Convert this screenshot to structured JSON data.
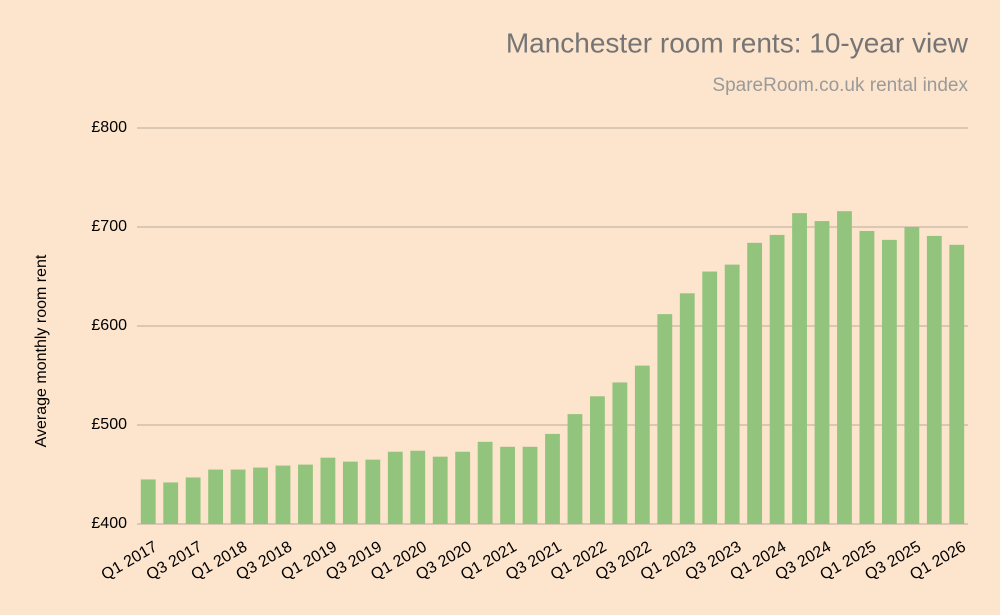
{
  "chart_data": {
    "type": "bar",
    "title": "Manchester room rents: 10-year view",
    "subtitle": "SpareRoom.co.uk rental index",
    "y_axis_label": "Average monthly room rent",
    "categories": [
      "Q1 2017",
      null,
      "Q3 2017",
      null,
      "Q1 2018",
      null,
      "Q3 2018",
      null,
      "Q1 2019",
      null,
      "Q3 2019",
      null,
      "Q1 2020",
      null,
      "Q3 2020",
      null,
      "Q1 2021",
      null,
      "Q3 2021",
      null,
      "Q1 2022",
      null,
      "Q3 2022",
      null,
      "Q1 2023",
      null,
      "Q3 2023",
      null,
      "Q1 2024",
      null,
      "Q3 2024",
      null,
      "Q1 2025",
      null,
      "Q3 2025",
      null,
      "Q1 2026"
    ],
    "values": [
      445,
      442,
      447,
      455,
      455,
      457,
      459,
      460,
      467,
      463,
      465,
      473,
      474,
      468,
      473,
      483,
      478,
      478,
      491,
      511,
      529,
      543,
      560,
      612,
      633,
      655,
      662,
      684,
      692,
      714,
      706,
      716,
      696,
      687,
      700,
      691,
      682
    ],
    "color": "#93c47d",
    "ylim": [
      400,
      800
    ],
    "yticks": [
      {
        "value": 400,
        "label": "£400"
      },
      {
        "value": 500,
        "label": "£500"
      },
      {
        "value": 600,
        "label": "£600"
      },
      {
        "value": 700,
        "label": "£700"
      },
      {
        "value": 800,
        "label": "£800"
      }
    ],
    "grid": true
  }
}
